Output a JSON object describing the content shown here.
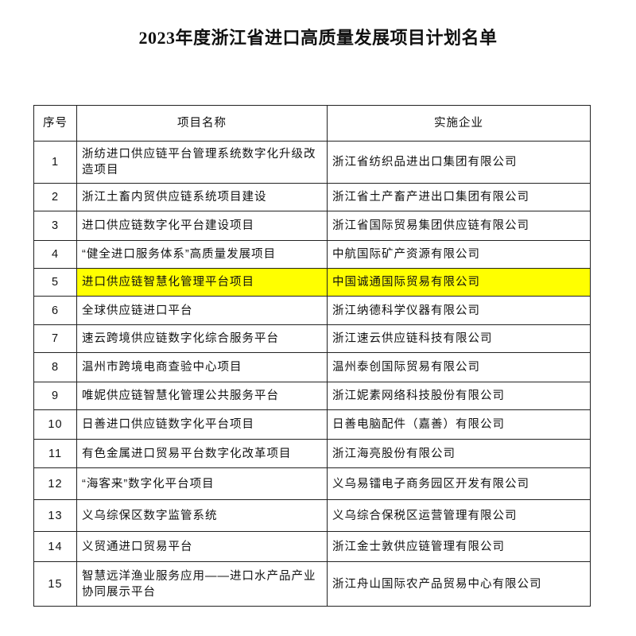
{
  "title": "2023年度浙江省进口高质量发展项目计划名单",
  "headers": {
    "no": "序号",
    "project": "项目名称",
    "company": "实施企业"
  },
  "highlight_color": "#ffff00",
  "rows": [
    {
      "no": "1",
      "project": "浙纺进口供应链平台管理系统数字化升级改造项目",
      "company": "浙江省纺织品进出口集团有限公司"
    },
    {
      "no": "2",
      "project": "浙江土畜内贸供应链系统项目建设",
      "company": "浙江省土产畜产进出口集团有限公司"
    },
    {
      "no": "3",
      "project": "进口供应链数字化平台建设项目",
      "company": "浙江省国际贸易集团供应链有限公司"
    },
    {
      "no": "4",
      "project": "“健全进口服务体系”高质量发展项目",
      "company": "中航国际矿产资源有限公司"
    },
    {
      "no": "5",
      "project": "进口供应链智慧化管理平台项目",
      "company": "中国诚通国际贸易有限公司",
      "highlighted": true
    },
    {
      "no": "6",
      "project": "全球供应链进口平台",
      "company": "浙江纳德科学仪器有限公司"
    },
    {
      "no": "7",
      "project": "速云跨境供应链数字化综合服务平台",
      "company": "浙江速云供应链科技有限公司"
    },
    {
      "no": "8",
      "project": "温州市跨境电商查验中心项目",
      "company": "温州泰创国际贸易有限公司"
    },
    {
      "no": "9",
      "project": "唯妮供应链智慧化管理公共服务平台",
      "company": "浙江妮素网络科技股份有限公司"
    },
    {
      "no": "10",
      "project": "日善进口供应链数字化平台项目",
      "company": "日善电脑配件（嘉善）有限公司"
    },
    {
      "no": "11",
      "project": "有色金属进口贸易平台数字化改革项目",
      "company": "浙江海亮股份有限公司"
    },
    {
      "no": "12",
      "project": "“海客来”数字化平台项目",
      "company": "义乌易镭电子商务园区开发有限公司"
    },
    {
      "no": "13",
      "project": "义乌综保区数字监管系统",
      "company": "义乌综合保税区运营管理有限公司"
    },
    {
      "no": "14",
      "project": "义贸通进口贸易平台",
      "company": "浙江金士敦供应链管理有限公司"
    },
    {
      "no": "15",
      "project": "智慧远洋渔业服务应用——进口水产品产业协同展示平台",
      "company": "浙江舟山国际农产品贸易中心有限公司"
    }
  ]
}
